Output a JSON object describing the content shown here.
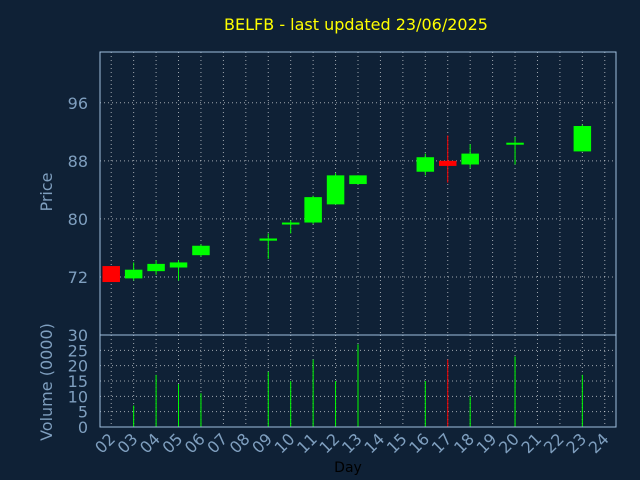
{
  "chart_data": {
    "type": "candlestick",
    "title": "BELFB - last updated 23/06/2025",
    "xlabel": "Day",
    "price_ylabel": "Price",
    "volume_ylabel": "Volume (0000)",
    "price_yticks": [
      72,
      80,
      88,
      96
    ],
    "price_ylim": [
      64,
      103
    ],
    "volume_yticks": [
      0,
      5,
      10,
      15,
      20,
      25,
      30
    ],
    "volume_ylim": [
      0,
      30
    ],
    "x_ticks": [
      "02",
      "03",
      "04",
      "05",
      "06",
      "07",
      "08",
      "09",
      "10",
      "11",
      "12",
      "13",
      "14",
      "15",
      "16",
      "17",
      "18",
      "19",
      "20",
      "21",
      "22",
      "23",
      "24"
    ],
    "grid": true,
    "colors": {
      "background": "#0f2136",
      "up": "#00ff00",
      "down": "#ff0000",
      "axis_text": "#7f9fbf",
      "title": "#ffff00",
      "frame": "#9fbfdf",
      "grid": "#ffffff"
    },
    "candles": [
      {
        "day": "02",
        "open": 73.5,
        "high": 73.5,
        "low": 71.3,
        "close": 71.3,
        "volume": 0
      },
      {
        "day": "03",
        "open": 71.8,
        "high": 74.0,
        "low": 71.5,
        "close": 73.0,
        "volume": 7
      },
      {
        "day": "04",
        "open": 72.8,
        "high": 74.3,
        "low": 72.3,
        "close": 73.8,
        "volume": 17
      },
      {
        "day": "05",
        "open": 73.3,
        "high": 74.3,
        "low": 71.5,
        "close": 74.0,
        "volume": 14
      },
      {
        "day": "06",
        "open": 75.0,
        "high": 76.5,
        "low": 74.8,
        "close": 76.3,
        "volume": 11
      },
      {
        "day": "09",
        "open": 77.0,
        "high": 78.0,
        "low": 74.5,
        "close": 77.3,
        "volume": 18
      },
      {
        "day": "10",
        "open": 79.3,
        "high": 79.8,
        "low": 78.0,
        "close": 79.5,
        "volume": 15
      },
      {
        "day": "11",
        "open": 79.5,
        "high": 83.2,
        "low": 79.3,
        "close": 83.0,
        "volume": 22
      },
      {
        "day": "12",
        "open": 82.0,
        "high": 86.3,
        "low": 82.0,
        "close": 86.0,
        "volume": 15
      },
      {
        "day": "13",
        "open": 84.8,
        "high": 86.0,
        "low": 84.8,
        "close": 86.0,
        "volume": 27
      },
      {
        "day": "16",
        "open": 86.5,
        "high": 89.0,
        "low": 86.0,
        "close": 88.5,
        "volume": 15
      },
      {
        "day": "17",
        "open": 88.0,
        "high": 91.5,
        "low": 85.0,
        "close": 87.3,
        "volume": 22
      },
      {
        "day": "18",
        "open": 87.5,
        "high": 90.3,
        "low": 87.0,
        "close": 89.0,
        "volume": 10
      },
      {
        "day": "20",
        "open": 90.3,
        "high": 91.3,
        "low": 87.5,
        "close": 90.5,
        "volume": 23
      },
      {
        "day": "23",
        "open": 89.3,
        "high": 93.0,
        "low": 89.3,
        "close": 92.8,
        "volume": 17
      }
    ]
  }
}
